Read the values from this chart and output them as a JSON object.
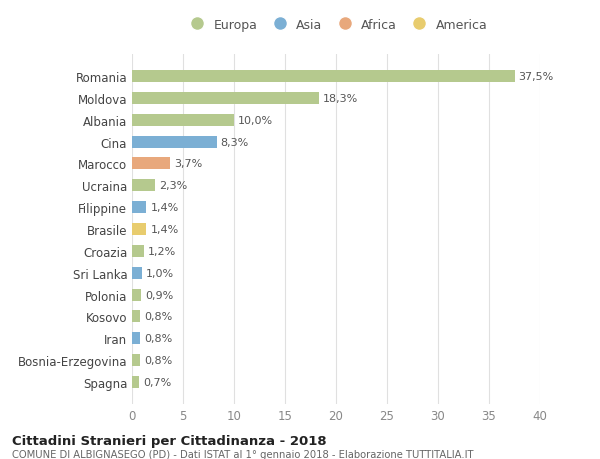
{
  "countries": [
    "Romania",
    "Moldova",
    "Albania",
    "Cina",
    "Marocco",
    "Ucraina",
    "Filippine",
    "Brasile",
    "Croazia",
    "Sri Lanka",
    "Polonia",
    "Kosovo",
    "Iran",
    "Bosnia-Erzegovina",
    "Spagna"
  ],
  "values": [
    37.5,
    18.3,
    10.0,
    8.3,
    3.7,
    2.3,
    1.4,
    1.4,
    1.2,
    1.0,
    0.9,
    0.8,
    0.8,
    0.8,
    0.7
  ],
  "labels": [
    "37,5%",
    "18,3%",
    "10,0%",
    "8,3%",
    "3,7%",
    "2,3%",
    "1,4%",
    "1,4%",
    "1,2%",
    "1,0%",
    "0,9%",
    "0,8%",
    "0,8%",
    "0,8%",
    "0,7%"
  ],
  "colors": [
    "#b5c98e",
    "#b5c98e",
    "#b5c98e",
    "#7bafd4",
    "#e8a87c",
    "#b5c98e",
    "#7bafd4",
    "#e8cc6e",
    "#b5c98e",
    "#7bafd4",
    "#b5c98e",
    "#b5c98e",
    "#7bafd4",
    "#b5c98e",
    "#b5c98e"
  ],
  "legend_labels": [
    "Europa",
    "Asia",
    "Africa",
    "America"
  ],
  "legend_colors": [
    "#b5c98e",
    "#7bafd4",
    "#e8a87c",
    "#e8cc6e"
  ],
  "title": "Cittadini Stranieri per Cittadinanza - 2018",
  "subtitle": "COMUNE DI ALBIGNASEGO (PD) - Dati ISTAT al 1° gennaio 2018 - Elaborazione TUTTITALIA.IT",
  "xlim": [
    0,
    40
  ],
  "xticks": [
    0,
    5,
    10,
    15,
    20,
    25,
    30,
    35,
    40
  ],
  "background_color": "#ffffff",
  "grid_color": "#e0e0e0",
  "bar_height": 0.55
}
